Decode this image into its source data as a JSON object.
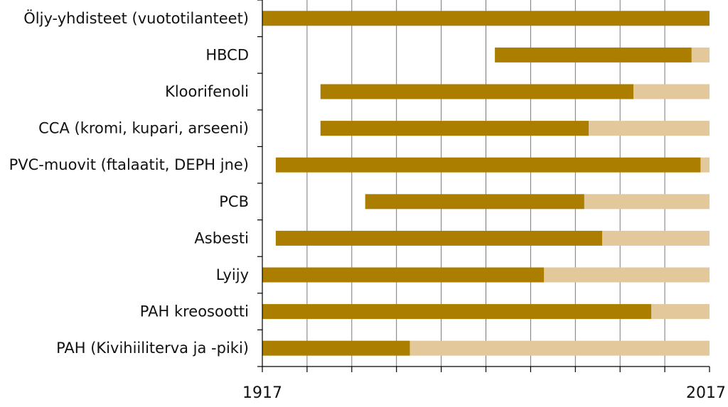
{
  "chart_data": {
    "type": "bar",
    "orientation": "horizontal-timeline",
    "title": "",
    "xlabel": "",
    "ylabel": "",
    "xlim": [
      1917,
      2017
    ],
    "x_ticks": [
      1917,
      1927,
      1937,
      1947,
      1957,
      1967,
      1977,
      1987,
      1997,
      2007,
      2017
    ],
    "x_tick_labels": [
      "1917",
      "",
      "",
      "",
      "",
      "",
      "",
      "",
      "",
      "",
      "2017"
    ],
    "grid": "vertical lines at 10-year intervals",
    "colors": {
      "in_use": "#ac7e00",
      "continued": "#e2c89b",
      "grid": "#777777",
      "axis": "#000000"
    },
    "categories": [
      "Öljy-yhdisteet (vuototilanteet)",
      "HBCD",
      "Kloorifenoli",
      "CCA (kromi, kupari, arseeni)",
      "PVC-muovit (ftalaatit, DEPH jne)",
      "PCB",
      "Asbesti",
      "Lyijy",
      "PAH kreosootti",
      "PAH (Kivihiiliterva ja -piki)"
    ],
    "series": [
      {
        "values": [
          [
            1917,
            2017
          ],
          [
            1969,
            2013
          ],
          [
            1930,
            2000
          ],
          [
            1930,
            1990
          ],
          [
            1920,
            2015
          ],
          [
            1940,
            1989
          ],
          [
            1920,
            1993
          ],
          [
            1917,
            1980
          ],
          [
            1917,
            2004
          ],
          [
            1917,
            1950
          ]
        ]
      },
      {
        "values": [
          null,
          [
            2013,
            2017
          ],
          [
            2000,
            2017
          ],
          [
            1990,
            2017
          ],
          [
            2015,
            2017
          ],
          [
            1989,
            2017
          ],
          [
            1993,
            2017
          ],
          [
            1980,
            2017
          ],
          [
            2004,
            2017
          ],
          [
            1950,
            2017
          ]
        ]
      }
    ]
  }
}
